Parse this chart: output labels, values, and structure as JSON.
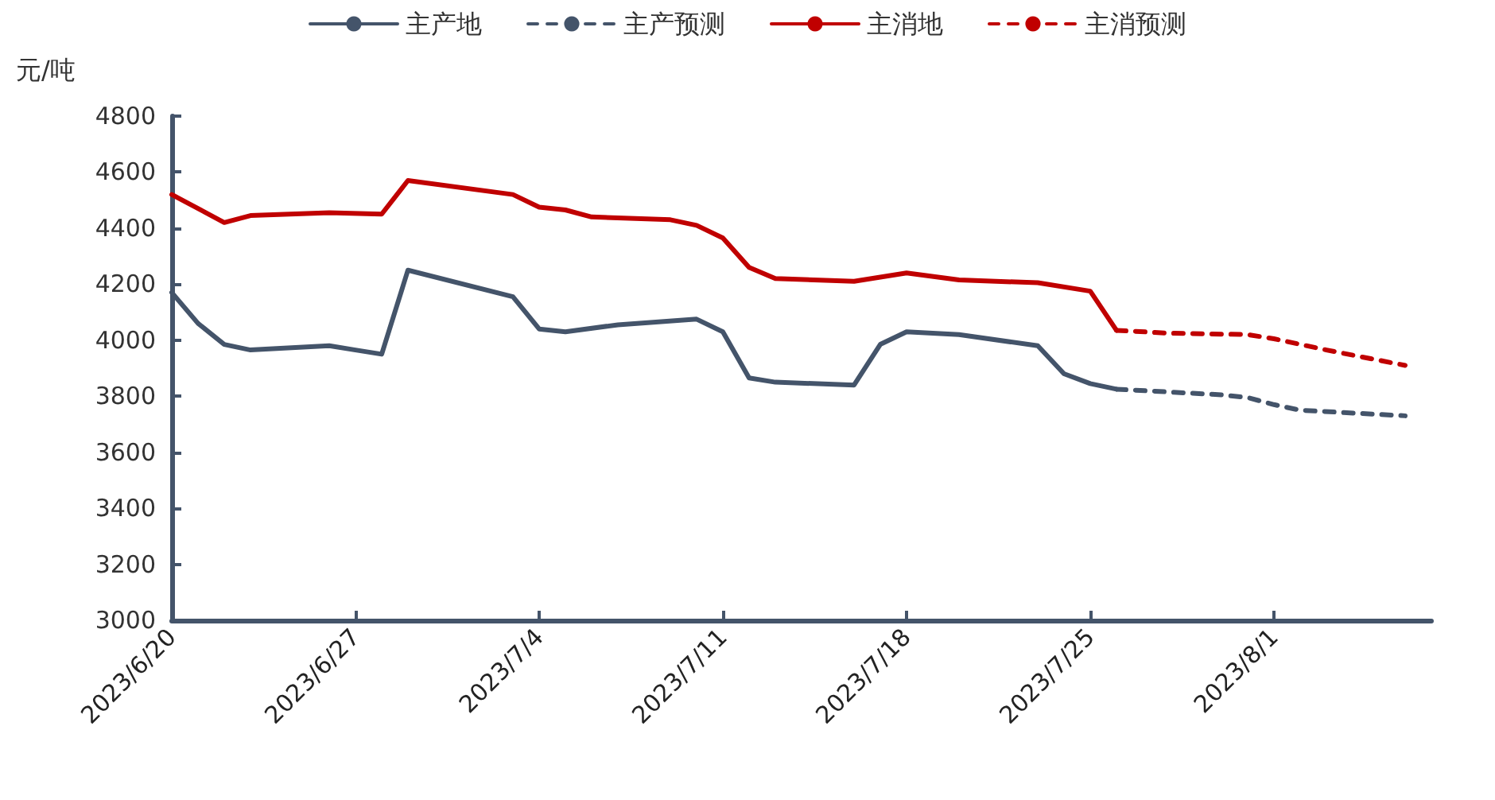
{
  "chart_data": {
    "type": "line",
    "ylabel": "元/吨",
    "xlim": [
      "2023-06-20",
      "2023-08-07"
    ],
    "xticks": [
      {
        "value": "2023-06-20",
        "label": "2023/6/20"
      },
      {
        "value": "2023-06-27",
        "label": "2023/6/27"
      },
      {
        "value": "2023-07-04",
        "label": "2023/7/4"
      },
      {
        "value": "2023-07-11",
        "label": "2023/7/11"
      },
      {
        "value": "2023-07-18",
        "label": "2023/7/18"
      },
      {
        "value": "2023-07-25",
        "label": "2023/7/25"
      },
      {
        "value": "2023-08-01",
        "label": "2023/8/1"
      }
    ],
    "ylim": [
      3000,
      4800
    ],
    "yticks": [
      3000,
      3200,
      3400,
      3600,
      3800,
      4000,
      4200,
      4400,
      4600,
      4800
    ],
    "grid": false,
    "legend": "top",
    "marker": "none",
    "series": [
      {
        "name": "主产地",
        "color": "#44546a",
        "line_style": "solid",
        "x": [
          "2023-06-20",
          "2023-06-21",
          "2023-06-22",
          "2023-06-23",
          "2023-06-26",
          "2023-06-27",
          "2023-06-28",
          "2023-06-29",
          "2023-07-03",
          "2023-07-04",
          "2023-07-05",
          "2023-07-07",
          "2023-07-10",
          "2023-07-11",
          "2023-07-12",
          "2023-07-13",
          "2023-07-16",
          "2023-07-17",
          "2023-07-18",
          "2023-07-20",
          "2023-07-23",
          "2023-07-24",
          "2023-07-25",
          "2023-07-26"
        ],
        "values": [
          4170,
          4060,
          3985,
          3965,
          3980,
          3965,
          3950,
          4250,
          4155,
          4040,
          4030,
          4055,
          4075,
          4030,
          3865,
          3850,
          3840,
          3985,
          4030,
          4020,
          3980,
          3880,
          3845,
          3825
        ]
      },
      {
        "name": "主产预测",
        "color": "#44546a",
        "line_style": "dashed",
        "x": [
          "2023-07-26",
          "2023-07-28",
          "2023-07-30",
          "2023-07-31",
          "2023-08-01",
          "2023-08-02",
          "2023-08-06"
        ],
        "values": [
          3825,
          3815,
          3805,
          3795,
          3770,
          3750,
          3730
        ]
      },
      {
        "name": "主消地",
        "color": "#c00000",
        "line_style": "solid",
        "x": [
          "2023-06-20",
          "2023-06-22",
          "2023-06-23",
          "2023-06-26",
          "2023-06-28",
          "2023-06-29",
          "2023-07-03",
          "2023-07-04",
          "2023-07-05",
          "2023-07-06",
          "2023-07-09",
          "2023-07-10",
          "2023-07-11",
          "2023-07-12",
          "2023-07-13",
          "2023-07-16",
          "2023-07-18",
          "2023-07-20",
          "2023-07-23",
          "2023-07-25",
          "2023-07-26"
        ],
        "values": [
          4520,
          4420,
          4445,
          4455,
          4450,
          4570,
          4520,
          4475,
          4465,
          4440,
          4430,
          4410,
          4365,
          4260,
          4220,
          4210,
          4240,
          4215,
          4205,
          4175,
          4035
        ]
      },
      {
        "name": "主消预测",
        "color": "#c00000",
        "line_style": "dashed",
        "x": [
          "2023-07-26",
          "2023-07-28",
          "2023-07-31",
          "2023-08-01",
          "2023-08-03",
          "2023-08-06"
        ],
        "values": [
          4035,
          4025,
          4020,
          4005,
          3965,
          3910
        ]
      }
    ]
  }
}
